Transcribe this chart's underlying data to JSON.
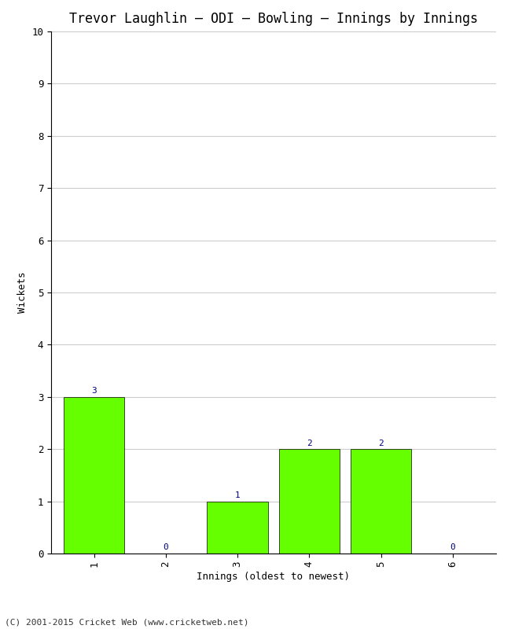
{
  "title": "Trevor Laughlin – ODI – Bowling – Innings by Innings",
  "xlabel": "Innings (oldest to newest)",
  "ylabel": "Wickets",
  "categories": [
    "1",
    "2",
    "3",
    "4",
    "5",
    "6"
  ],
  "values": [
    3,
    0,
    1,
    2,
    2,
    0
  ],
  "bar_color": "#66ff00",
  "bar_edge_color": "#000000",
  "ylim": [
    0,
    10
  ],
  "yticks": [
    0,
    1,
    2,
    3,
    4,
    5,
    6,
    7,
    8,
    9,
    10
  ],
  "label_color": "#000080",
  "background_color": "#ffffff",
  "grid_color": "#cccccc",
  "footer": "(C) 2001-2015 Cricket Web (www.cricketweb.net)",
  "title_fontsize": 12,
  "axis_label_fontsize": 9,
  "tick_fontsize": 9,
  "bar_label_fontsize": 8
}
